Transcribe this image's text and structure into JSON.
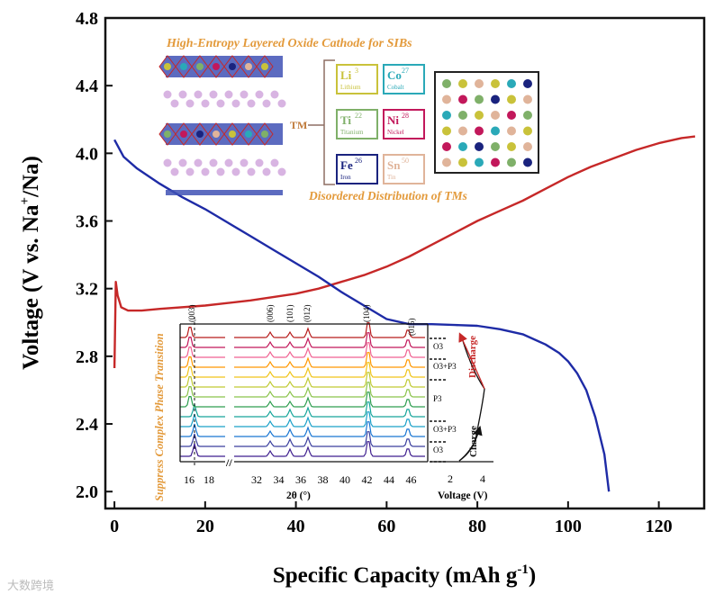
{
  "chart_data": {
    "type": "line",
    "xlabel": "Specific Capacity  (mAh g",
    "xlabel_sup": "-1",
    "xlabel_end": ")",
    "ylabel": "Voltage (V vs. Na",
    "ylabel_sup": "+",
    "ylabel_end": "/Na)",
    "xlim": [
      -2,
      130
    ],
    "ylim": [
      1.9,
      4.8
    ],
    "xticks": [
      0,
      20,
      40,
      60,
      80,
      100,
      120
    ],
    "yticks": [
      2.0,
      2.4,
      2.8,
      3.2,
      3.6,
      4.0,
      4.4,
      4.8
    ],
    "series": [
      {
        "color": "#c62828",
        "x": [
          0,
          0.3,
          0.7,
          1.5,
          3,
          6,
          10,
          20,
          30,
          40,
          45,
          50,
          55,
          60,
          65,
          70,
          75,
          80,
          85,
          90,
          95,
          100,
          105,
          110,
          115,
          120,
          125,
          128
        ],
        "y": [
          2.73,
          3.24,
          3.16,
          3.09,
          3.07,
          3.07,
          3.08,
          3.1,
          3.13,
          3.17,
          3.2,
          3.24,
          3.28,
          3.33,
          3.39,
          3.46,
          3.53,
          3.6,
          3.66,
          3.72,
          3.79,
          3.86,
          3.92,
          3.97,
          4.02,
          4.06,
          4.09,
          4.1
        ]
      },
      {
        "color": "#1e2ba6",
        "x": [
          0,
          2,
          5,
          10,
          15,
          20,
          25,
          30,
          35,
          40,
          45,
          50,
          55,
          60,
          65,
          70,
          75,
          80,
          85,
          90,
          95,
          98,
          100,
          102,
          104,
          106,
          108,
          109
        ],
        "y": [
          4.08,
          3.98,
          3.91,
          3.82,
          3.74,
          3.67,
          3.59,
          3.51,
          3.43,
          3.35,
          3.27,
          3.18,
          3.1,
          3.02,
          2.99,
          2.99,
          2.985,
          2.98,
          2.96,
          2.93,
          2.87,
          2.82,
          2.77,
          2.7,
          2.6,
          2.44,
          2.22,
          2.0
        ]
      }
    ]
  },
  "inset_top": {
    "title": "High-Entropy Layered Oxide Cathode for SIBs",
    "subtitle": "Disordered Distribution of TMs",
    "tm_label": "TM",
    "elements": [
      {
        "symbol": "Li",
        "number": "3",
        "name": "Lithium",
        "color": "#c9c23a"
      },
      {
        "symbol": "Co",
        "number": "27",
        "name": "Cobalt",
        "color": "#2aa9b8"
      },
      {
        "symbol": "Ti",
        "number": "22",
        "name": "Titanium",
        "color": "#7fb069"
      },
      {
        "symbol": "Ni",
        "number": "28",
        "name": "Nickel",
        "color": "#c2185b"
      },
      {
        "symbol": "Fe",
        "number": "26",
        "name": "Iron",
        "color": "#1a237e"
      },
      {
        "symbol": "Sn",
        "number": "50",
        "name": "Tin",
        "color": "#e0b49a"
      }
    ]
  },
  "inset_xrd": {
    "vertical_label": "Suppress Complex Phase Transition",
    "xlabel": "2θ (°)",
    "xticks_left": [
      "16",
      "18"
    ],
    "xticks_right": [
      "32",
      "34",
      "36",
      "38",
      "40",
      "42",
      "44",
      "46"
    ],
    "peaks": [
      "(003)",
      "(006)",
      "(101)",
      "(012)",
      "(104)",
      "(015)"
    ],
    "phases": [
      "O3",
      "O3+P3",
      "P3",
      "O3+P3",
      "O3"
    ],
    "discharge_label": "Discharge",
    "charge_label": "Charge",
    "voltage_xlabel": "Voltage (V)",
    "voltage_ticks": [
      "2",
      "4"
    ]
  },
  "watermark": "大数跨境"
}
